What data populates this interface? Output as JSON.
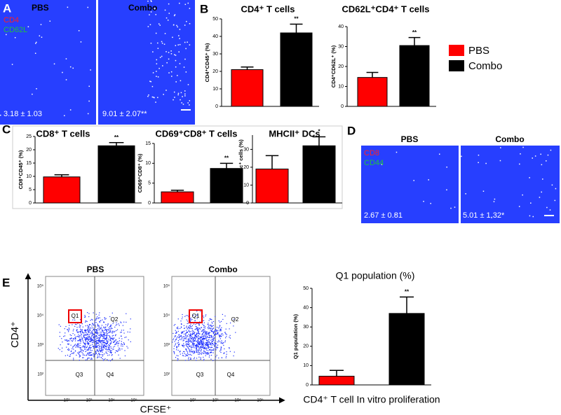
{
  "panels": {
    "a": "A",
    "b": "B",
    "c": "C",
    "d": "D",
    "e": "E"
  },
  "images_a": {
    "left_title": "PBS",
    "right_title": "Combo",
    "stain1": "CD4",
    "stain2": "CD62L",
    "left_value": "3.18 ± 1.03",
    "right_value": "9.01 ± 2.07**"
  },
  "images_d": {
    "left_title": "PBS",
    "right_title": "Combo",
    "stain1": "CD8",
    "stain2": "CD44",
    "left_value": "2.67 ± 0.81",
    "right_value": "5.01 ± 1.32*"
  },
  "flow": {
    "left_title": "PBS",
    "right_title": "Combo",
    "quadrants": [
      "Q1",
      "Q2",
      "Q3",
      "Q4"
    ],
    "ticks": [
      "10²",
      "10³",
      "10⁴",
      "10⁵"
    ],
    "y_axis": "CD4⁺",
    "x_axis": "CFSE⁺"
  },
  "chart_data": [
    {
      "type": "bar",
      "title": "CD4⁺ T cells",
      "y_label": "CD4⁺CD45⁺ (%)",
      "ylim": [
        0,
        50
      ],
      "yticks": [
        0,
        10,
        20,
        30,
        40,
        50
      ],
      "annotation": "**",
      "series": [
        {
          "name": "PBS",
          "color": "#ff0000",
          "values": [
            21
          ],
          "errors": [
            1.5
          ]
        },
        {
          "name": "Combo",
          "color": "#000000",
          "values": [
            42
          ],
          "errors": [
            5
          ]
        }
      ]
    },
    {
      "type": "bar",
      "title": "CD62L⁺CD4⁺ T cells",
      "y_label": "CD4⁺CD62L⁺ (%)",
      "ylim": [
        0,
        40
      ],
      "yticks": [
        0,
        10,
        20,
        30,
        40
      ],
      "annotation": "**",
      "series": [
        {
          "name": "PBS",
          "color": "#ff0000",
          "values": [
            14.5
          ],
          "errors": [
            2.5
          ]
        },
        {
          "name": "Combo",
          "color": "#000000",
          "values": [
            30.5
          ],
          "errors": [
            4
          ]
        }
      ]
    },
    {
      "type": "bar",
      "title": "CD8⁺ T cells",
      "y_label": "CD8⁺CD45⁺ (%)",
      "ylim": [
        0,
        25
      ],
      "yticks": [
        0,
        5,
        10,
        15,
        20,
        25
      ],
      "annotation": "**",
      "series": [
        {
          "name": "PBS",
          "color": "#ff0000",
          "values": [
            9.8
          ],
          "errors": [
            0.8
          ]
        },
        {
          "name": "Combo",
          "color": "#000000",
          "values": [
            21.5
          ],
          "errors": [
            1.2
          ]
        }
      ]
    },
    {
      "type": "bar",
      "title": "CD69⁺CD8⁺ T cells",
      "y_label": "CD69⁺CD8⁺ (%)",
      "ylim": [
        0,
        15
      ],
      "yticks": [
        0,
        5,
        10,
        15
      ],
      "annotation": "**",
      "series": [
        {
          "name": "PBS",
          "color": "#ff0000",
          "values": [
            2.8
          ],
          "errors": [
            0.4
          ]
        },
        {
          "name": "Combo",
          "color": "#000000",
          "values": [
            8.7
          ],
          "errors": [
            1.3
          ]
        }
      ]
    },
    {
      "type": "bar",
      "title": "MHCII⁺ DCs",
      "y_label": "MHCII⁺CD11c⁺ cells (%)",
      "ylim": [
        0,
        38
      ],
      "yticks": [
        0,
        10,
        20,
        30
      ],
      "annotation": "*",
      "series": [
        {
          "name": "PBS",
          "color": "#ff0000",
          "values": [
            19
          ],
          "errors": [
            7.5
          ]
        },
        {
          "name": "Combo",
          "color": "#000000",
          "values": [
            32
          ],
          "errors": [
            5
          ]
        }
      ]
    },
    {
      "type": "bar",
      "title": "Q1 population (%)",
      "y_label": "Q1 population (%)",
      "x_label": "CD4⁺ T cell In vitro proliferation",
      "ylim": [
        0,
        50
      ],
      "yticks": [
        0,
        10,
        20,
        30,
        40,
        50
      ],
      "annotation": "**",
      "series": [
        {
          "name": "PBS",
          "color": "#ff0000",
          "values": [
            4.5
          ],
          "errors": [
            3
          ]
        },
        {
          "name": "Combo",
          "color": "#000000",
          "values": [
            37
          ],
          "errors": [
            8.5
          ]
        }
      ]
    }
  ]
}
